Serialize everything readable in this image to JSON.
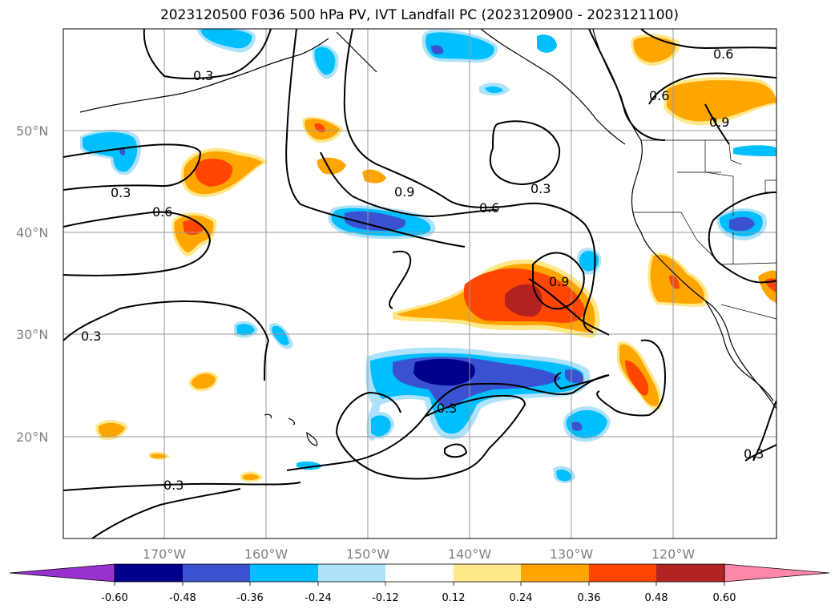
{
  "title": "2023120500 F036 500 hPa PV, IVT Landfall PC (2023120900 - 2023121100)",
  "map": {
    "lat_labels": [
      "50°N",
      "40°N",
      "30°N",
      "20°N"
    ],
    "lon_labels": [
      "170°W",
      "160°W",
      "150°W",
      "140°W",
      "130°W",
      "120°W"
    ],
    "contour_labels": [
      "0.3",
      "0.3",
      "0.6",
      "0.9",
      "0.6",
      "0.3",
      "0.9",
      "0.3",
      "0.3",
      "0.6",
      "0.3",
      "0.6",
      "0.9",
      "0.3"
    ]
  },
  "colorbar": {
    "levels": [
      "-0.60",
      "-0.48",
      "-0.36",
      "-0.24",
      "-0.12",
      "0.12",
      "0.24",
      "0.36",
      "0.48",
      "0.60"
    ],
    "colors": [
      "#9932cc",
      "#00008b",
      "#3a52d0",
      "#00bfff",
      "#aee2fb",
      "#ffffff",
      "#ffe88a",
      "#ffa500",
      "#ff4500",
      "#b22222",
      "#ff88aa"
    ]
  }
}
